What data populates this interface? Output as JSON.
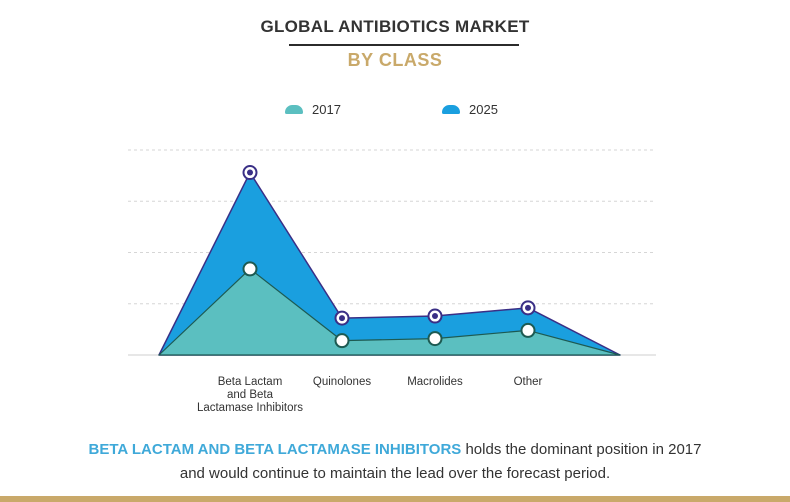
{
  "header": {
    "title": "GLOBAL ANTIBIOTICS MARKET",
    "subtitle": "BY CLASS"
  },
  "colors": {
    "series_2017": "#5bbfc0",
    "series_2025": "#1a9fdf",
    "marker_2017_ring": "#1d5a52",
    "marker_2025_ring": "#3a2f86",
    "accent_gold": "#c9a96a",
    "highlight_blue": "#3fa9d9"
  },
  "chart_data": {
    "type": "area",
    "categories": [
      "Beta Lactam and Beta Lactamase Inhibitors",
      "Quinolones",
      "Macrolides",
      "Other"
    ],
    "category_label_lines": [
      [
        "Beta Lactam",
        "and Beta",
        "Lactamase Inhibitors"
      ],
      [
        "Quinolones"
      ],
      [
        "Macrolides"
      ],
      [
        "Other"
      ]
    ],
    "series": [
      {
        "name": "2017",
        "values": [
          42,
          7,
          8,
          12
        ]
      },
      {
        "name": "2025",
        "values": [
          89,
          18,
          19,
          23
        ]
      }
    ],
    "ylim": [
      0,
      100
    ],
    "grid": true,
    "legend_position": "top-center"
  },
  "caption": {
    "highlight": "BETA LACTAM AND BETA LACTAMASE INHIBITORS",
    "line1_rest": " holds the dominant position in 2017",
    "line2": "and would continue to maintain the lead over the forecast period."
  }
}
